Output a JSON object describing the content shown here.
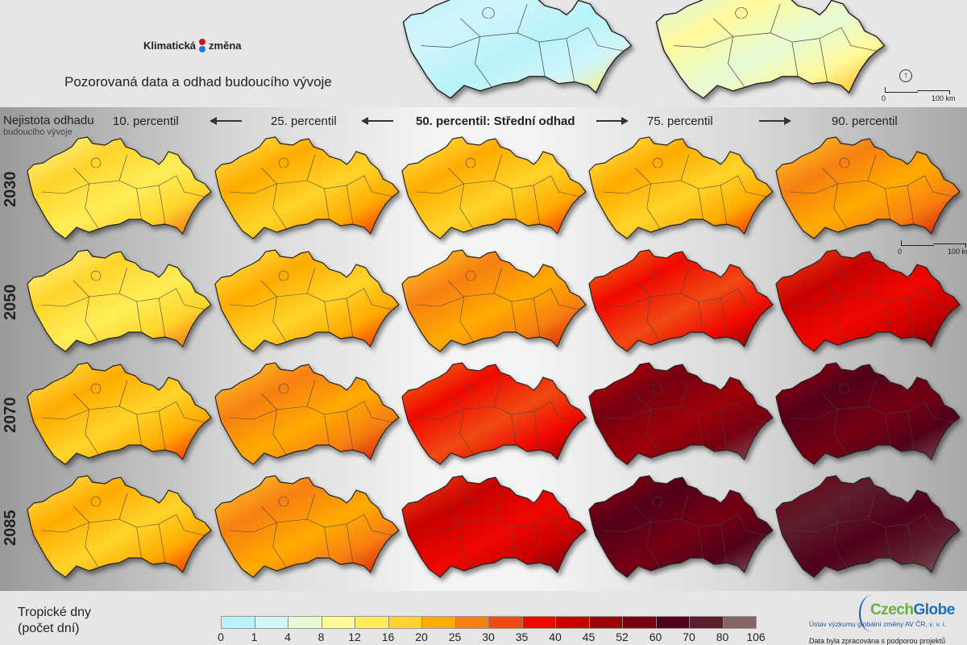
{
  "header": {
    "logo_left": "Klimatická",
    "logo_right": "změna",
    "logo_colors": {
      "red": "#d0101a",
      "blue": "#1a78e0"
    },
    "subtitle": "Pozorovaná data a odhad budoucího vývoje",
    "uncertainty_title": "Nejistota odhadu",
    "uncertainty_sub": "budoucího vývoje"
  },
  "columns": [
    {
      "label": "10. percentil"
    },
    {
      "label": "25. percentil"
    },
    {
      "label": "50. percentil: Střední odhad"
    },
    {
      "label": "75. percentil"
    },
    {
      "label": "90. percentil"
    }
  ],
  "rows": [
    {
      "year": "2030",
      "class_by_column": [
        5,
        6,
        6,
        6,
        7
      ]
    },
    {
      "year": "2050",
      "class_by_column": [
        5,
        6,
        7,
        9,
        10
      ]
    },
    {
      "year": "2070",
      "class_by_column": [
        6,
        7,
        9,
        12,
        13
      ]
    },
    {
      "year": "2085",
      "class_by_column": [
        6,
        7,
        10,
        13,
        14
      ]
    }
  ],
  "observed_maps": {
    "class_by_map": [
      1,
      3
    ]
  },
  "scale": {
    "zero": "0",
    "hundred": "100 km",
    "north": "↑"
  },
  "legend": {
    "title_line1": "Tropické dny",
    "title_line2": "(počet dní)",
    "ticks": [
      "0",
      "1",
      "4",
      "8",
      "12",
      "16",
      "20",
      "25",
      "30",
      "35",
      "40",
      "45",
      "52",
      "60",
      "70",
      "80",
      "106"
    ],
    "colors": [
      "#b8f2fa",
      "#d0f6fa",
      "#e6fad6",
      "#fff99a",
      "#ffee58",
      "#ffd42a",
      "#ffab00",
      "#f77f12",
      "#f04a12",
      "#f00800",
      "#c80000",
      "#9e0008",
      "#760012",
      "#52001a",
      "#5c1e2c",
      "#846464"
    ]
  },
  "footer": {
    "brand_a": "Czech",
    "brand_b": "Globe",
    "brand_sub": "Ústav výzkumu globální změny AV ČR, v. v. i.",
    "note": "Data byla zpracována s podporou projektů"
  }
}
